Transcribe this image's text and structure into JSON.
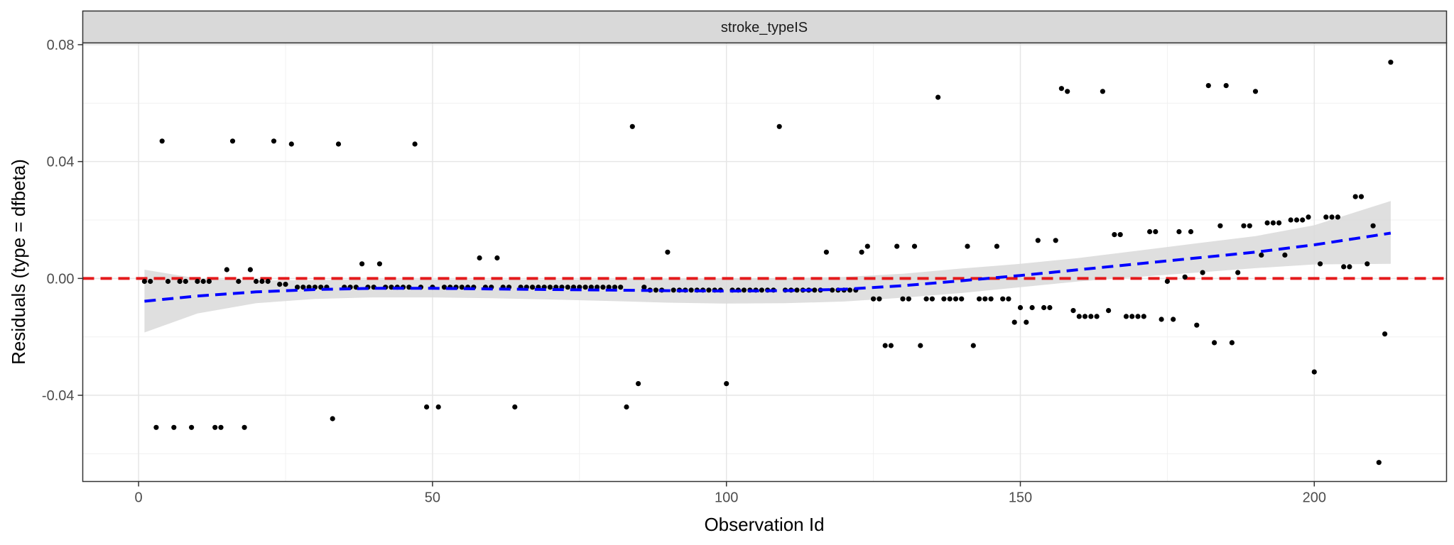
{
  "chart_data": {
    "type": "scatter",
    "facet_label": "stroke_typeIS",
    "xlabel": "Observation Id",
    "ylabel": "Residuals (type = dfbeta)",
    "xlim": [
      -9.5,
      222.5
    ],
    "ylim": [
      -0.0695,
      0.0806
    ],
    "x_ticks": [
      0,
      50,
      100,
      150,
      200
    ],
    "y_ticks": [
      -0.04,
      0,
      0.04,
      0.08
    ],
    "y_tick_labels": [
      "-0.04",
      "0.00",
      "0.04",
      "0.08"
    ],
    "grid": true,
    "reference_line": {
      "y": 0,
      "color": "#e41a1c",
      "style": "dashed"
    },
    "smooth_line_color": "#0000ff",
    "confidence_band_color": "#d9d9d9",
    "point_color": "#000000",
    "points": [
      [
        1,
        -0.001
      ],
      [
        2,
        -0.001
      ],
      [
        3,
        -0.051
      ],
      [
        4,
        0.047
      ],
      [
        5,
        -0.001
      ],
      [
        6,
        -0.051
      ],
      [
        7,
        -0.001
      ],
      [
        8,
        -0.001
      ],
      [
        9,
        -0.051
      ],
      [
        10,
        -0.001
      ],
      [
        11,
        -0.001
      ],
      [
        12,
        -0.001
      ],
      [
        13,
        -0.051
      ],
      [
        14,
        -0.051
      ],
      [
        15,
        0.003
      ],
      [
        16,
        0.047
      ],
      [
        17,
        -0.001
      ],
      [
        18,
        -0.051
      ],
      [
        19,
        0.003
      ],
      [
        20,
        -0.001
      ],
      [
        21,
        -0.001
      ],
      [
        22,
        -0.001
      ],
      [
        23,
        0.047
      ],
      [
        24,
        -0.002
      ],
      [
        25,
        -0.002
      ],
      [
        26,
        0.046
      ],
      [
        27,
        -0.003
      ],
      [
        28,
        -0.003
      ],
      [
        29,
        -0.003
      ],
      [
        30,
        -0.003
      ],
      [
        31,
        -0.003
      ],
      [
        32,
        -0.003
      ],
      [
        33,
        -0.048
      ],
      [
        34,
        0.046
      ],
      [
        35,
        -0.003
      ],
      [
        36,
        -0.003
      ],
      [
        37,
        -0.003
      ],
      [
        38,
        0.005
      ],
      [
        39,
        -0.003
      ],
      [
        40,
        -0.003
      ],
      [
        41,
        0.005
      ],
      [
        42,
        -0.003
      ],
      [
        43,
        -0.003
      ],
      [
        44,
        -0.003
      ],
      [
        45,
        -0.003
      ],
      [
        46,
        -0.003
      ],
      [
        47,
        0.046
      ],
      [
        48,
        -0.003
      ],
      [
        49,
        -0.044
      ],
      [
        50,
        -0.003
      ],
      [
        51,
        -0.044
      ],
      [
        52,
        -0.003
      ],
      [
        53,
        -0.003
      ],
      [
        54,
        -0.003
      ],
      [
        55,
        -0.003
      ],
      [
        56,
        -0.003
      ],
      [
        57,
        -0.003
      ],
      [
        58,
        0.007
      ],
      [
        59,
        -0.003
      ],
      [
        60,
        -0.003
      ],
      [
        61,
        0.007
      ],
      [
        62,
        -0.003
      ],
      [
        63,
        -0.003
      ],
      [
        64,
        -0.044
      ],
      [
        65,
        -0.003
      ],
      [
        66,
        -0.003
      ],
      [
        67,
        -0.003
      ],
      [
        68,
        -0.003
      ],
      [
        69,
        -0.003
      ],
      [
        70,
        -0.003
      ],
      [
        71,
        -0.003
      ],
      [
        72,
        -0.003
      ],
      [
        73,
        -0.003
      ],
      [
        74,
        -0.003
      ],
      [
        75,
        -0.003
      ],
      [
        76,
        -0.003
      ],
      [
        77,
        -0.003
      ],
      [
        78,
        -0.003
      ],
      [
        79,
        -0.003
      ],
      [
        80,
        -0.003
      ],
      [
        81,
        -0.003
      ],
      [
        82,
        -0.003
      ],
      [
        83,
        -0.044
      ],
      [
        84,
        0.052
      ],
      [
        85,
        -0.036
      ],
      [
        86,
        -0.003
      ],
      [
        87,
        -0.004
      ],
      [
        88,
        -0.004
      ],
      [
        89,
        -0.004
      ],
      [
        90,
        0.009
      ],
      [
        91,
        -0.004
      ],
      [
        92,
        -0.004
      ],
      [
        93,
        -0.004
      ],
      [
        94,
        -0.004
      ],
      [
        95,
        -0.004
      ],
      [
        96,
        -0.004
      ],
      [
        97,
        -0.004
      ],
      [
        98,
        -0.004
      ],
      [
        99,
        -0.004
      ],
      [
        100,
        -0.036
      ],
      [
        101,
        -0.004
      ],
      [
        102,
        -0.004
      ],
      [
        103,
        -0.004
      ],
      [
        104,
        -0.004
      ],
      [
        105,
        -0.004
      ],
      [
        106,
        -0.004
      ],
      [
        107,
        -0.004
      ],
      [
        108,
        -0.004
      ],
      [
        109,
        0.052
      ],
      [
        110,
        -0.004
      ],
      [
        111,
        -0.004
      ],
      [
        112,
        -0.004
      ],
      [
        113,
        -0.004
      ],
      [
        114,
        -0.004
      ],
      [
        115,
        -0.004
      ],
      [
        116,
        -0.004
      ],
      [
        117,
        0.009
      ],
      [
        118,
        -0.004
      ],
      [
        119,
        -0.004
      ],
      [
        120,
        -0.004
      ],
      [
        121,
        -0.004
      ],
      [
        122,
        -0.004
      ],
      [
        123,
        0.009
      ],
      [
        124,
        0.011
      ],
      [
        125,
        -0.007
      ],
      [
        126,
        -0.007
      ],
      [
        127,
        -0.023
      ],
      [
        128,
        -0.023
      ],
      [
        129,
        0.011
      ],
      [
        130,
        -0.007
      ],
      [
        131,
        -0.007
      ],
      [
        132,
        0.011
      ],
      [
        133,
        -0.023
      ],
      [
        134,
        -0.007
      ],
      [
        135,
        -0.007
      ],
      [
        136,
        0.062
      ],
      [
        137,
        -0.007
      ],
      [
        138,
        -0.007
      ],
      [
        139,
        -0.007
      ],
      [
        140,
        -0.007
      ],
      [
        141,
        0.011
      ],
      [
        142,
        -0.023
      ],
      [
        143,
        -0.007
      ],
      [
        144,
        -0.007
      ],
      [
        145,
        -0.007
      ],
      [
        146,
        0.011
      ],
      [
        147,
        -0.007
      ],
      [
        148,
        -0.007
      ],
      [
        149,
        -0.015
      ],
      [
        150,
        -0.01
      ],
      [
        151,
        -0.015
      ],
      [
        152,
        -0.01
      ],
      [
        153,
        0.013
      ],
      [
        154,
        -0.01
      ],
      [
        155,
        -0.01
      ],
      [
        156,
        0.013
      ],
      [
        157,
        0.065
      ],
      [
        158,
        0.064
      ],
      [
        159,
        -0.011
      ],
      [
        160,
        -0.013
      ],
      [
        161,
        -0.013
      ],
      [
        162,
        -0.013
      ],
      [
        163,
        -0.013
      ],
      [
        164,
        0.064
      ],
      [
        165,
        -0.011
      ],
      [
        166,
        0.015
      ],
      [
        167,
        0.015
      ],
      [
        168,
        -0.013
      ],
      [
        169,
        -0.013
      ],
      [
        170,
        -0.013
      ],
      [
        171,
        -0.013
      ],
      [
        172,
        0.016
      ],
      [
        173,
        0.016
      ],
      [
        174,
        -0.014
      ],
      [
        175,
        -0.001
      ],
      [
        176,
        -0.014
      ],
      [
        177,
        0.016
      ],
      [
        178,
        0.0005
      ],
      [
        179,
        0.016
      ],
      [
        180,
        -0.016
      ],
      [
        181,
        0.002
      ],
      [
        182,
        0.066
      ],
      [
        183,
        -0.022
      ],
      [
        184,
        0.018
      ],
      [
        185,
        0.066
      ],
      [
        186,
        -0.022
      ],
      [
        187,
        0.002
      ],
      [
        188,
        0.018
      ],
      [
        189,
        0.018
      ],
      [
        190,
        0.064
      ],
      [
        191,
        0.008
      ],
      [
        192,
        0.019
      ],
      [
        193,
        0.019
      ],
      [
        194,
        0.019
      ],
      [
        195,
        0.008
      ],
      [
        196,
        0.02
      ],
      [
        197,
        0.02
      ],
      [
        198,
        0.02
      ],
      [
        199,
        0.021
      ],
      [
        200,
        -0.032
      ],
      [
        201,
        0.005
      ],
      [
        202,
        0.021
      ],
      [
        203,
        0.021
      ],
      [
        204,
        0.021
      ],
      [
        205,
        0.004
      ],
      [
        206,
        0.004
      ],
      [
        207,
        0.028
      ],
      [
        208,
        0.028
      ],
      [
        209,
        0.005
      ],
      [
        210,
        0.018
      ],
      [
        211,
        -0.063
      ],
      [
        212,
        -0.019
      ],
      [
        213,
        0.074
      ]
    ],
    "smooth_line": {
      "x": [
        1,
        10,
        20,
        30,
        40,
        50,
        60,
        70,
        80,
        90,
        100,
        110,
        120,
        130,
        140,
        150,
        160,
        170,
        180,
        190,
        200,
        213
      ],
      "y": [
        -0.0078,
        -0.006,
        -0.0046,
        -0.0038,
        -0.0034,
        -0.0034,
        -0.0036,
        -0.0038,
        -0.004,
        -0.0042,
        -0.0043,
        -0.0042,
        -0.0037,
        -0.0025,
        -0.0008,
        0.001,
        0.003,
        0.005,
        0.007,
        0.009,
        0.0115,
        0.0155
      ],
      "lower": [
        -0.0185,
        -0.012,
        -0.0085,
        -0.007,
        -0.0065,
        -0.0065,
        -0.0068,
        -0.0072,
        -0.0077,
        -0.0083,
        -0.0086,
        -0.0085,
        -0.0079,
        -0.0066,
        -0.005,
        -0.003,
        -0.001,
        0.0005,
        0.002,
        0.0035,
        0.0048,
        0.005
      ],
      "upper": [
        0.003,
        0.0,
        -0.0007,
        -0.0006,
        -0.0003,
        -0.0003,
        -0.0004,
        -0.0004,
        -0.0003,
        -0.0001,
        0.0,
        0.0001,
        0.0005,
        0.0016,
        0.0034,
        0.005,
        0.007,
        0.0095,
        0.012,
        0.0145,
        0.0182,
        0.0265
      ]
    }
  }
}
